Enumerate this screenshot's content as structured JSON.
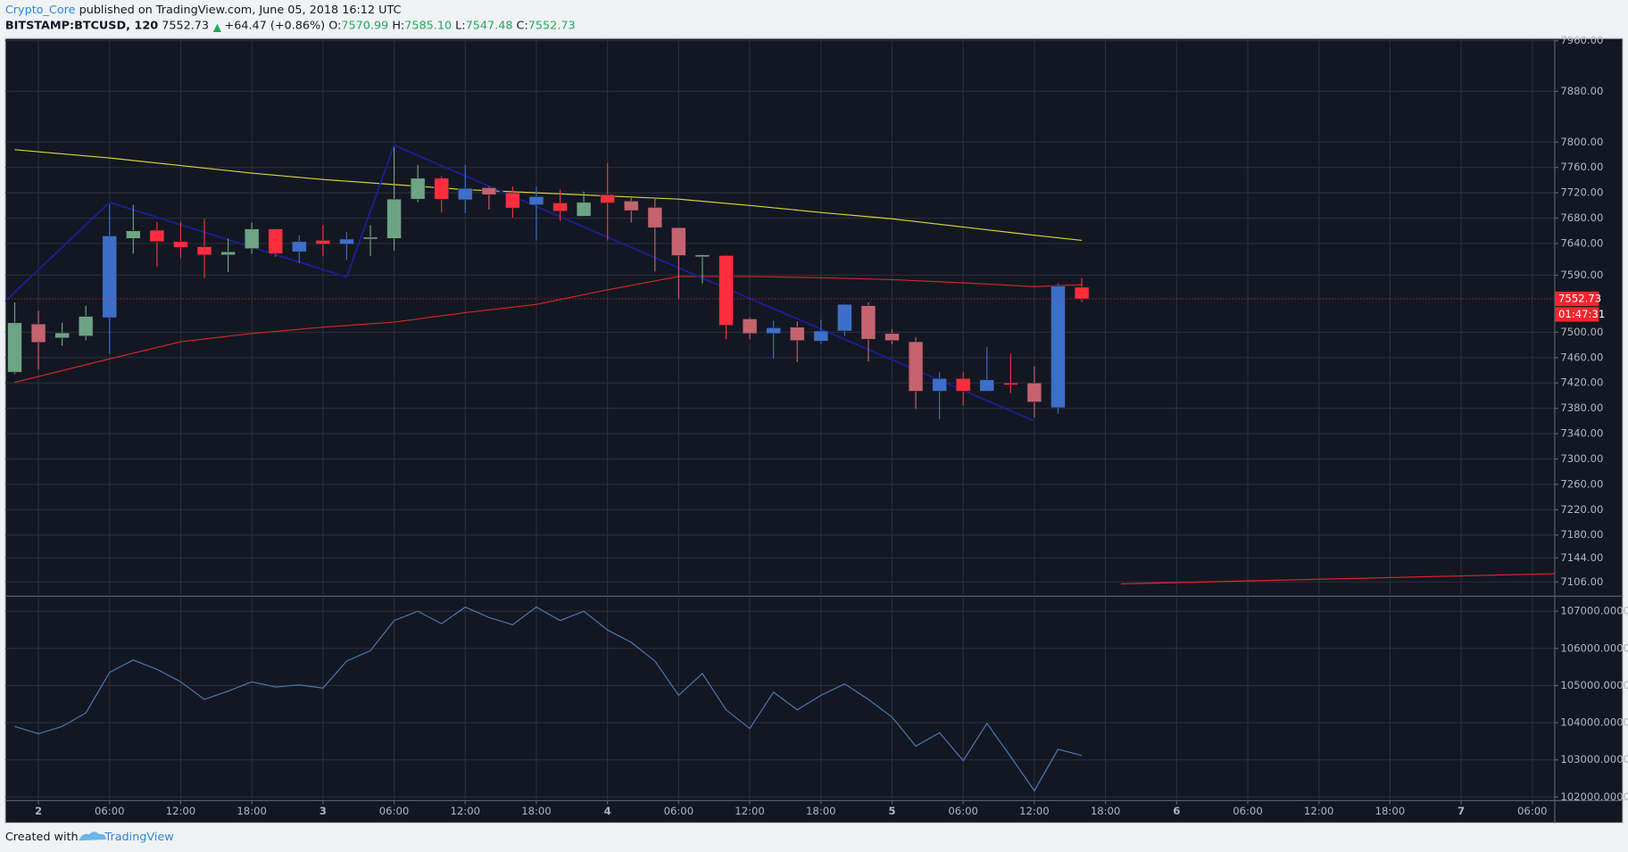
{
  "header": {
    "author": "Crypto_Core",
    "published": "published on TradingView.com, June 05, 2018 16:12 UTC",
    "symbol": "BITSTAMP:BTCUSD, 120",
    "last": "7552.73",
    "change": "+64.47 (+0.86%)",
    "ohlc": [
      {
        "label": "O:",
        "value": "7570.99"
      },
      {
        "label": "H:",
        "value": "7585.10"
      },
      {
        "label": "L:",
        "value": "7547.48"
      },
      {
        "label": "C:",
        "value": "7552.73"
      }
    ]
  },
  "footer": {
    "text": "Created with",
    "brand": "TradingView"
  },
  "chart_data": [
    {
      "type": "candlestick",
      "x": [
        -2,
        0,
        2,
        4,
        6,
        8,
        10,
        12,
        14,
        16,
        18,
        20,
        22,
        24,
        26,
        28,
        30,
        32,
        34,
        36,
        38,
        40,
        42,
        44,
        46,
        48,
        50,
        52,
        54,
        56,
        58,
        60,
        62,
        64,
        66,
        68,
        70,
        72,
        74,
        76,
        78,
        80,
        82,
        84,
        86,
        88
      ],
      "open": [
        7437,
        7513,
        7491,
        7494,
        7523,
        7648,
        7661,
        7643,
        7635,
        7622,
        7632,
        7663,
        7627,
        7645,
        7639,
        7647,
        7648,
        7710,
        7743,
        7709,
        7728,
        7720,
        7701,
        7704,
        7683,
        7717,
        7707,
        7697,
        7665,
        7619,
        7621,
        7521,
        7498,
        7508,
        7486,
        7502,
        7542,
        7498,
        7485,
        7407,
        7427,
        7407,
        7420,
        7420,
        7381,
        7570.99
      ],
      "high": [
        7547,
        7534,
        7515,
        7542,
        7702,
        7701,
        7674,
        7674,
        7679,
        7648,
        7673,
        7663,
        7653,
        7669,
        7658,
        7669,
        7792,
        7764,
        7746,
        7764,
        7730,
        7730,
        7730,
        7725,
        7722,
        7767,
        7712,
        7712,
        7665,
        7623,
        7622,
        7523,
        7518,
        7517,
        7520,
        7545,
        7547,
        7505,
        7492,
        7437,
        7437,
        7477,
        7466,
        7446,
        7577,
        7585.1
      ],
      "low": [
        7434,
        7441,
        7479,
        7487,
        7466,
        7624,
        7604,
        7617,
        7585,
        7595,
        7624,
        7619,
        7609,
        7620,
        7614,
        7620,
        7629,
        7705,
        7689,
        7688,
        7694,
        7681,
        7645,
        7676,
        7683,
        7645,
        7673,
        7596,
        7552,
        7577,
        7489,
        7489,
        7458,
        7453,
        7482,
        7494,
        7454,
        7481,
        7379,
        7363,
        7384,
        7407,
        7404,
        7365,
        7371,
        7547.48
      ],
      "close": [
        7515,
        7484,
        7499,
        7525,
        7652,
        7660,
        7643,
        7634,
        7622,
        7627,
        7663,
        7624,
        7643,
        7639,
        7647,
        7650,
        7710,
        7743,
        7710,
        7727,
        7717,
        7696,
        7714,
        7691,
        7705,
        7704,
        7692,
        7665,
        7621,
        7622,
        7511,
        7498,
        7507,
        7487,
        7502,
        7544,
        7489,
        7487,
        7407,
        7427,
        7407,
        7425,
        7417,
        7390,
        7573,
        7552.73
      ],
      "colors": [
        "#6ea484",
        "#c4636e",
        "#6ea484",
        "#6ea484",
        "#3d6ec9",
        "#6ea484",
        "#ff2d3d",
        "#ff2d3d",
        "#ff2d3d",
        "#6ea484",
        "#6ea484",
        "#ff2d3d",
        "#3d6ec9",
        "#ff2d3d",
        "#3d6ec9",
        "#6ea484",
        "#6ea484",
        "#6ea484",
        "#ff2d3d",
        "#3d6ec9",
        "#c4636e",
        "#ff2d3d",
        "#3d6ec9",
        "#ff2d3d",
        "#6ea484",
        "#ff2d3d",
        "#c4636e",
        "#c4636e",
        "#c4636e",
        "#6ea484",
        "#ff2d3d",
        "#c4636e",
        "#3d6ec9",
        "#c4636e",
        "#3d6ec9",
        "#3d6ec9",
        "#c4636e",
        "#c4636e",
        "#c4636e",
        "#3d6ec9",
        "#ff2d3d",
        "#3d6ec9",
        "#ff2d3d",
        "#c4636e",
        "#3d6ec9",
        "#ff2d3d"
      ],
      "series": [
        {
          "color": "#d6d43a",
          "x": [
            -2,
            6,
            12,
            18,
            24,
            30,
            36,
            42,
            48,
            54,
            60,
            66,
            72,
            78,
            84,
            88
          ],
          "values": [
            7788,
            7775,
            7763,
            7751,
            7741,
            7733,
            7725,
            7720,
            7715,
            7710,
            7700,
            7689,
            7679,
            7666,
            7653,
            7645
          ]
        },
        {
          "color": "#d3262c",
          "x": [
            -2,
            6,
            12,
            18,
            24,
            30,
            36,
            42,
            48,
            54,
            60,
            66,
            72,
            78,
            84,
            88
          ],
          "values": [
            7421,
            7458,
            7485,
            7498,
            7508,
            7516,
            7531,
            7544,
            7567,
            7588,
            7588,
            7586,
            7583,
            7578,
            7572,
            7575
          ]
        },
        {
          "color": "#1c1c9c",
          "x": [
            -2.8,
            6,
            26,
            30,
            84
          ],
          "values": [
            7549,
            7705,
            7587,
            7795,
            7360
          ]
        },
        {
          "color": "#e8232b",
          "x": [
            91.3,
            127.85
          ],
          "values": [
            7103,
            7119
          ]
        }
      ],
      "last_price": 7552.73,
      "countdown": "01:47:31",
      "price_label_color": "#f2262f",
      "xlim": [
        -2.8,
        127.85
      ],
      "ylim": [
        7086,
        7962
      ],
      "yticks": [
        {
          "value": 7960,
          "label": "7960.00"
        },
        {
          "value": 7880,
          "label": "7880.00"
        },
        {
          "value": 7800,
          "label": "7800.00"
        },
        {
          "value": 7760,
          "label": "7760.00"
        },
        {
          "value": 7720,
          "label": "7720.00"
        },
        {
          "value": 7680,
          "label": "7680.00"
        },
        {
          "value": 7640,
          "label": "7640.00"
        },
        {
          "value": 7590,
          "label": "7590.00"
        },
        {
          "value": 7500,
          "label": "7500.00"
        },
        {
          "value": 7460,
          "label": "7460.00"
        },
        {
          "value": 7420,
          "label": "7420.00"
        },
        {
          "value": 7380,
          "label": "7380.00"
        },
        {
          "value": 7340,
          "label": "7340.00"
        },
        {
          "value": 7300,
          "label": "7300.00"
        },
        {
          "value": 7260,
          "label": "7260.00"
        },
        {
          "value": 7220,
          "label": "7220.00"
        },
        {
          "value": 7180,
          "label": "7180.00"
        },
        {
          "value": 7144,
          "label": "7144.00"
        },
        {
          "value": 7106,
          "label": "7106.00"
        }
      ],
      "xticks": [
        {
          "value": 0,
          "label": "2"
        },
        {
          "value": 6,
          "label": "06:00"
        },
        {
          "value": 12,
          "label": "12:00"
        },
        {
          "value": 18,
          "label": "18:00"
        },
        {
          "value": 24,
          "label": "3"
        },
        {
          "value": 30,
          "label": "06:00"
        },
        {
          "value": 36,
          "label": "12:00"
        },
        {
          "value": 42,
          "label": "18:00"
        },
        {
          "value": 48,
          "label": "4"
        },
        {
          "value": 54,
          "label": "06:00"
        },
        {
          "value": 60,
          "label": "12:00"
        },
        {
          "value": 66,
          "label": "18:00"
        },
        {
          "value": 72,
          "label": "5"
        },
        {
          "value": 78,
          "label": "06:00"
        },
        {
          "value": 84,
          "label": "12:00"
        },
        {
          "value": 90,
          "label": "18:00"
        },
        {
          "value": 96,
          "label": "6"
        },
        {
          "value": 102,
          "label": "06:00"
        },
        {
          "value": 108,
          "label": "12:00"
        },
        {
          "value": 114,
          "label": "18:00"
        },
        {
          "value": 120,
          "label": "7"
        },
        {
          "value": 126,
          "label": "06:00"
        }
      ],
      "grid": true
    },
    {
      "type": "line",
      "x": [
        -2,
        0,
        2,
        4,
        6,
        8,
        10,
        12,
        14,
        16,
        18,
        20,
        22,
        24,
        26,
        28,
        30,
        32,
        34,
        36,
        38,
        40,
        42,
        44,
        46,
        48,
        50,
        52,
        54,
        56,
        58,
        60,
        62,
        64,
        66,
        68,
        70,
        72,
        74,
        76,
        78,
        80,
        82,
        84,
        86,
        88
      ],
      "values": [
        103899,
        103704,
        103899,
        104263,
        105352,
        105687,
        105436,
        105101,
        104626,
        104849,
        105101,
        104961,
        105017,
        104933,
        105659,
        105939,
        106749,
        107000,
        106665,
        107112,
        106832,
        106637,
        107112,
        106749,
        107000,
        106497,
        106162,
        105659,
        104737,
        105324,
        104346,
        103844,
        104821,
        104346,
        104737,
        105045,
        104626,
        104151,
        103369,
        103732,
        102978,
        103983,
        103089,
        102168,
        103285,
        103117
      ],
      "color": "#4a7bb5",
      "ylim": [
        101944,
        107363
      ],
      "yticks": [
        {
          "value": 107000,
          "label": "107000.0000"
        },
        {
          "value": 106000,
          "label": "106000.0000"
        },
        {
          "value": 105000,
          "label": "105000.0000"
        },
        {
          "value": 104000,
          "label": "104000.0000"
        },
        {
          "value": 103000,
          "label": "103000.0000"
        },
        {
          "value": 102000,
          "label": "102000.0000"
        }
      ],
      "grid": true
    }
  ]
}
